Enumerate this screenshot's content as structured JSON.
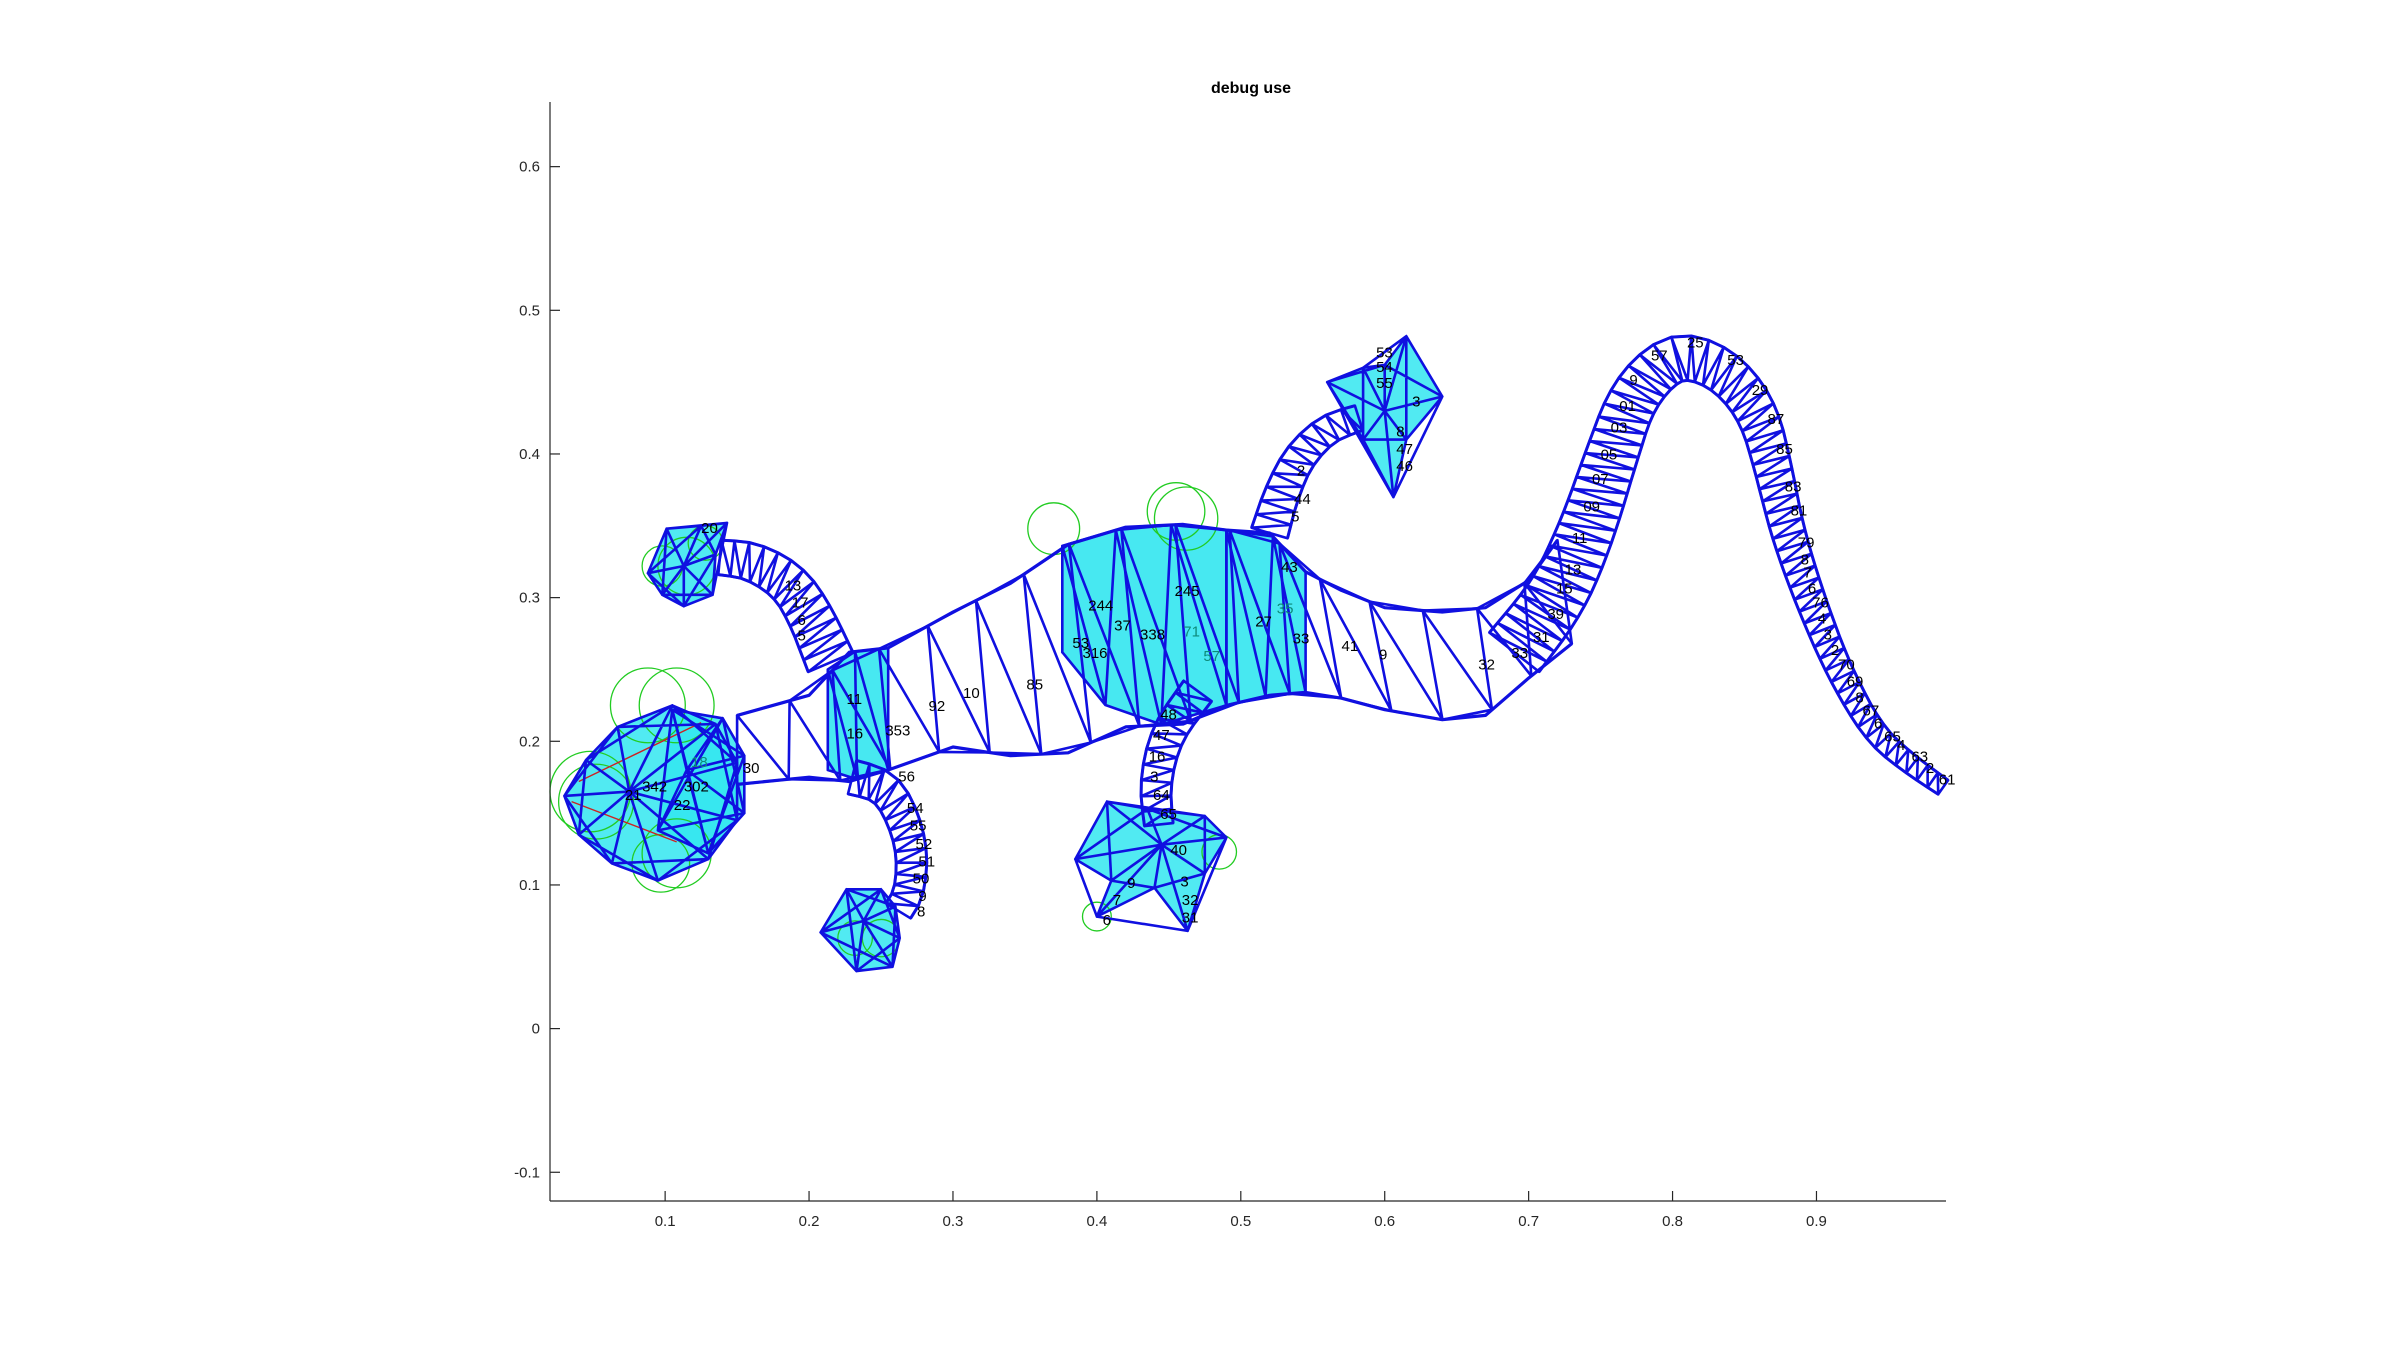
{
  "chart_data": {
    "type": "scatter",
    "title": "debug use",
    "xlabel": "",
    "ylabel": "",
    "xlim": [
      0.02,
      0.99
    ],
    "ylim": [
      -0.12,
      0.645
    ],
    "xticks": [
      0.1,
      0.2,
      0.3,
      0.4,
      0.5,
      0.6,
      0.7,
      0.8,
      0.9
    ],
    "xtick_labels": [
      "0.1",
      "0.2",
      "0.3",
      "0.4",
      "0.5",
      "0.6",
      "0.7",
      "0.8",
      "0.9"
    ],
    "yticks": [
      -0.1,
      0,
      0.1,
      0.2,
      0.3,
      0.4,
      0.5,
      0.6
    ],
    "ytick_labels": [
      "-0.1",
      "0",
      "0.1",
      "0.2",
      "0.3",
      "0.4",
      "0.5",
      "0.6"
    ],
    "grid": false,
    "legend": "none",
    "colors": {
      "mesh_edge": "#1010e0",
      "fill": "#33e6f0",
      "circle": "#22cc22",
      "constraint": "#cc2222",
      "vertex_label": "#000000",
      "highlight_label": "#0e8a7a"
    },
    "vertex_labels": [
      {
        "x": 0.125,
        "y": 0.345,
        "text": "20"
      },
      {
        "x": 0.084,
        "y": 0.165,
        "text": "342"
      },
      {
        "x": 0.072,
        "y": 0.159,
        "text": "21"
      },
      {
        "x": 0.113,
        "y": 0.165,
        "text": "302"
      },
      {
        "x": 0.106,
        "y": 0.152,
        "text": "22"
      },
      {
        "x": 0.118,
        "y": 0.182,
        "text": "18",
        "highlight": true
      },
      {
        "x": 0.154,
        "y": 0.178,
        "text": "30"
      },
      {
        "x": 0.226,
        "y": 0.226,
        "text": "11"
      },
      {
        "x": 0.226,
        "y": 0.202,
        "text": "16"
      },
      {
        "x": 0.253,
        "y": 0.204,
        "text": "353"
      },
      {
        "x": 0.283,
        "y": 0.221,
        "text": "92"
      },
      {
        "x": 0.307,
        "y": 0.23,
        "text": "10"
      },
      {
        "x": 0.351,
        "y": 0.236,
        "text": "85"
      },
      {
        "x": 0.383,
        "y": 0.265,
        "text": "53"
      },
      {
        "x": 0.39,
        "y": 0.258,
        "text": "316"
      },
      {
        "x": 0.394,
        "y": 0.291,
        "text": "244"
      },
      {
        "x": 0.43,
        "y": 0.271,
        "text": "338"
      },
      {
        "x": 0.412,
        "y": 0.277,
        "text": "37"
      },
      {
        "x": 0.454,
        "y": 0.301,
        "text": "245"
      },
      {
        "x": 0.46,
        "y": 0.273,
        "text": "71",
        "highlight": true
      },
      {
        "x": 0.474,
        "y": 0.256,
        "text": "57",
        "highlight": true
      },
      {
        "x": 0.525,
        "y": 0.289,
        "text": "35",
        "highlight": true
      },
      {
        "x": 0.51,
        "y": 0.28,
        "text": "27"
      },
      {
        "x": 0.536,
        "y": 0.268,
        "text": "33"
      },
      {
        "x": 0.57,
        "y": 0.263,
        "text": "41"
      },
      {
        "x": 0.596,
        "y": 0.257,
        "text": "9"
      },
      {
        "x": 0.665,
        "y": 0.25,
        "text": "32"
      },
      {
        "x": 0.688,
        "y": 0.258,
        "text": "33"
      },
      {
        "x": 0.703,
        "y": 0.269,
        "text": "31"
      },
      {
        "x": 0.713,
        "y": 0.285,
        "text": "39"
      },
      {
        "x": 0.719,
        "y": 0.303,
        "text": "15"
      },
      {
        "x": 0.725,
        "y": 0.316,
        "text": "13"
      },
      {
        "x": 0.73,
        "y": 0.338,
        "text": "11"
      },
      {
        "x": 0.738,
        "y": 0.36,
        "text": "09"
      },
      {
        "x": 0.744,
        "y": 0.379,
        "text": "07"
      },
      {
        "x": 0.75,
        "y": 0.396,
        "text": "05"
      },
      {
        "x": 0.757,
        "y": 0.415,
        "text": "03"
      },
      {
        "x": 0.763,
        "y": 0.43,
        "text": "01"
      },
      {
        "x": 0.77,
        "y": 0.448,
        "text": "9"
      },
      {
        "x": 0.785,
        "y": 0.465,
        "text": "57"
      },
      {
        "x": 0.81,
        "y": 0.474,
        "text": "25"
      },
      {
        "x": 0.838,
        "y": 0.462,
        "text": "53"
      },
      {
        "x": 0.855,
        "y": 0.441,
        "text": "29"
      },
      {
        "x": 0.866,
        "y": 0.421,
        "text": "87"
      },
      {
        "x": 0.872,
        "y": 0.4,
        "text": "85"
      },
      {
        "x": 0.878,
        "y": 0.374,
        "text": "83"
      },
      {
        "x": 0.882,
        "y": 0.357,
        "text": "81"
      },
      {
        "x": 0.887,
        "y": 0.335,
        "text": "79"
      },
      {
        "x": 0.889,
        "y": 0.323,
        "text": "8"
      },
      {
        "x": 0.891,
        "y": 0.314,
        "text": "7"
      },
      {
        "x": 0.894,
        "y": 0.303,
        "text": "6"
      },
      {
        "x": 0.897,
        "y": 0.293,
        "text": "76"
      },
      {
        "x": 0.901,
        "y": 0.282,
        "text": "4"
      },
      {
        "x": 0.905,
        "y": 0.271,
        "text": "3"
      },
      {
        "x": 0.91,
        "y": 0.26,
        "text": "2"
      },
      {
        "x": 0.915,
        "y": 0.25,
        "text": "70"
      },
      {
        "x": 0.921,
        "y": 0.238,
        "text": "69"
      },
      {
        "x": 0.927,
        "y": 0.227,
        "text": "8"
      },
      {
        "x": 0.932,
        "y": 0.218,
        "text": "67"
      },
      {
        "x": 0.94,
        "y": 0.209,
        "text": "6"
      },
      {
        "x": 0.947,
        "y": 0.2,
        "text": "65"
      },
      {
        "x": 0.956,
        "y": 0.194,
        "text": "4"
      },
      {
        "x": 0.966,
        "y": 0.186,
        "text": "63"
      },
      {
        "x": 0.976,
        "y": 0.178,
        "text": "2"
      },
      {
        "x": 0.985,
        "y": 0.17,
        "text": "61"
      },
      {
        "x": 0.594,
        "y": 0.467,
        "text": "53"
      },
      {
        "x": 0.594,
        "y": 0.457,
        "text": "54"
      },
      {
        "x": 0.594,
        "y": 0.446,
        "text": "55"
      },
      {
        "x": 0.619,
        "y": 0.433,
        "text": "3"
      },
      {
        "x": 0.608,
        "y": 0.412,
        "text": "8"
      },
      {
        "x": 0.608,
        "y": 0.4,
        "text": "47"
      },
      {
        "x": 0.608,
        "y": 0.388,
        "text": "46"
      },
      {
        "x": 0.539,
        "y": 0.385,
        "text": "2"
      },
      {
        "x": 0.537,
        "y": 0.365,
        "text": "44"
      },
      {
        "x": 0.535,
        "y": 0.353,
        "text": "5"
      },
      {
        "x": 0.528,
        "y": 0.318,
        "text": "43"
      },
      {
        "x": 0.183,
        "y": 0.305,
        "text": "13"
      },
      {
        "x": 0.188,
        "y": 0.293,
        "text": "17"
      },
      {
        "x": 0.192,
        "y": 0.281,
        "text": "6"
      },
      {
        "x": 0.192,
        "y": 0.27,
        "text": "5"
      },
      {
        "x": 0.262,
        "y": 0.172,
        "text": "56"
      },
      {
        "x": 0.268,
        "y": 0.15,
        "text": "54"
      },
      {
        "x": 0.27,
        "y": 0.138,
        "text": "55"
      },
      {
        "x": 0.274,
        "y": 0.125,
        "text": "52"
      },
      {
        "x": 0.276,
        "y": 0.113,
        "text": "51"
      },
      {
        "x": 0.272,
        "y": 0.101,
        "text": "50"
      },
      {
        "x": 0.276,
        "y": 0.089,
        "text": "9"
      },
      {
        "x": 0.275,
        "y": 0.078,
        "text": "8"
      },
      {
        "x": 0.444,
        "y": 0.215,
        "text": "48"
      },
      {
        "x": 0.439,
        "y": 0.201,
        "text": "47"
      },
      {
        "x": 0.436,
        "y": 0.186,
        "text": "16"
      },
      {
        "x": 0.437,
        "y": 0.172,
        "text": "3"
      },
      {
        "x": 0.439,
        "y": 0.159,
        "text": "64"
      },
      {
        "x": 0.444,
        "y": 0.146,
        "text": "65"
      },
      {
        "x": 0.451,
        "y": 0.121,
        "text": "40"
      },
      {
        "x": 0.458,
        "y": 0.099,
        "text": "3"
      },
      {
        "x": 0.459,
        "y": 0.086,
        "text": "32"
      },
      {
        "x": 0.459,
        "y": 0.074,
        "text": "31"
      },
      {
        "x": 0.421,
        "y": 0.098,
        "text": "9"
      },
      {
        "x": 0.411,
        "y": 0.086,
        "text": "7"
      },
      {
        "x": 0.404,
        "y": 0.072,
        "text": "6"
      }
    ]
  }
}
